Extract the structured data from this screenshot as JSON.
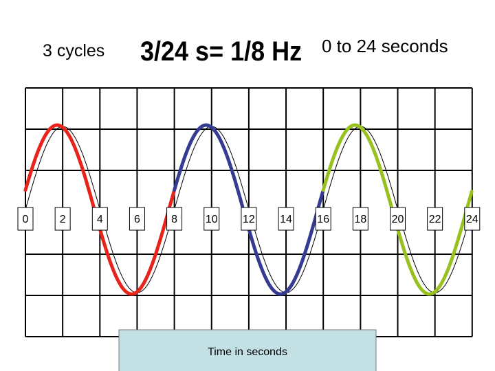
{
  "header": {
    "cycles": "3 cycles",
    "frequency": "3/24 s= 1/8 Hz",
    "range": "0 to 24 seconds"
  },
  "axis": {
    "tick_labels": [
      "0",
      "2",
      "4",
      "6",
      "8",
      "10",
      "12",
      "14",
      "16",
      "18",
      "20",
      "22",
      "24"
    ],
    "label": "Time in seconds"
  }
}
